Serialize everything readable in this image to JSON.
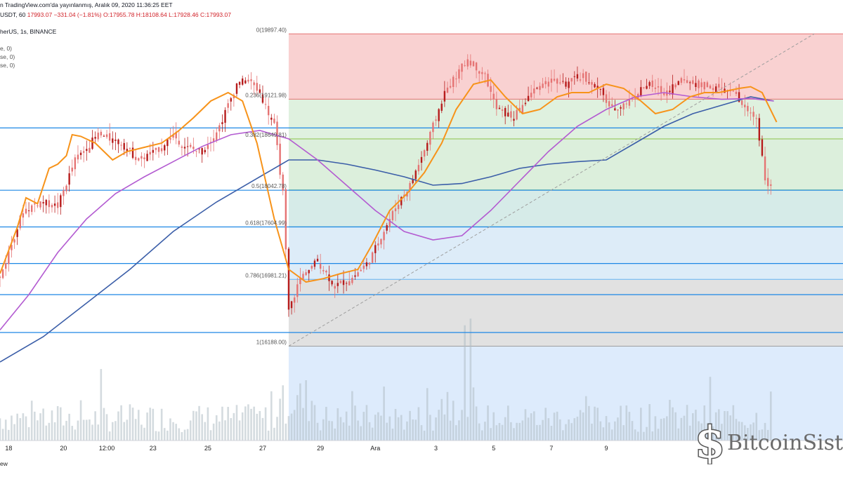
{
  "header": {
    "published": "n TradingView.com'da yayınlanmış, Aralık 09, 2020 11:36:25 EET",
    "symbol_prefix": "USDT, 60",
    "last": "17993.07",
    "change": "−331.04 (−1.81%)",
    "ohlc": "O:17955.78 H:18108.64 L:17928.46 C:17993.07",
    "source": "herUS, 1s, BINANCE",
    "ind1": "e, 0)",
    "ind2": "se, 0)",
    "ind3": "se, 0)"
  },
  "footer": {
    "brand": "ew"
  },
  "watermark": {
    "text": "BitcoinSisto",
    "icon": "bitcoin-logo-icon"
  },
  "colors": {
    "ema_fast": "#f7931a",
    "ema_mid": "#b35bd1",
    "ema_slow": "#3b5ea8",
    "hline": "#1e88e5",
    "candle": "#e57373",
    "candle_dark": "#b71c1c",
    "volume": "#b0bec5"
  },
  "chart_data": {
    "type": "candlestick",
    "x_ticks": [
      "18",
      "20",
      "12:00",
      "23",
      "25",
      "27",
      "29",
      "Ara",
      "3",
      "5",
      "7",
      "9"
    ],
    "fib_levels": [
      {
        "ratio": "0",
        "label": "0(19897.40)",
        "price": 19897.4
      },
      {
        "ratio": "0.236",
        "label": "0.236(19121.98)",
        "price": 19121.98
      },
      {
        "ratio": "0.382",
        "label": "0.382(18649.81)",
        "price": 18649.81
      },
      {
        "ratio": "0.5",
        "label": "0.5(18042.78)",
        "price": 18042.78
      },
      {
        "ratio": "0.618",
        "label": "0.618(17604.99)",
        "price": 17604.99
      },
      {
        "ratio": "0.786",
        "label": "0.786(16981.21)",
        "price": 16981.21
      },
      {
        "ratio": "1",
        "label": "1(16188.00)",
        "price": 16188.0
      }
    ],
    "horizontal_lines_price": [
      18780,
      18040,
      17604,
      17170,
      16800,
      16350
    ],
    "ema_fast": [
      [
        0,
        17050
      ],
      [
        6,
        17600
      ],
      [
        9,
        17950
      ],
      [
        13,
        17880
      ],
      [
        17,
        18300
      ],
      [
        20,
        18350
      ],
      [
        23,
        18450
      ],
      [
        25,
        18700
      ],
      [
        28,
        18680
      ],
      [
        33,
        18600
      ],
      [
        39,
        18400
      ],
      [
        44,
        18500
      ],
      [
        50,
        18550
      ],
      [
        56,
        18600
      ],
      [
        62,
        18750
      ],
      [
        67,
        18900
      ],
      [
        73,
        19100
      ],
      [
        79,
        19200
      ],
      [
        84,
        19100
      ],
      [
        89,
        18600
      ],
      [
        95,
        17700
      ],
      [
        100,
        17100
      ],
      [
        106,
        16950
      ],
      [
        112,
        16990
      ],
      [
        118,
        17050
      ],
      [
        124,
        17100
      ],
      [
        129,
        17400
      ],
      [
        135,
        17800
      ],
      [
        141,
        18000
      ],
      [
        147,
        18250
      ],
      [
        153,
        18600
      ],
      [
        158,
        19000
      ],
      [
        164,
        19300
      ],
      [
        170,
        19350
      ],
      [
        175,
        19150
      ],
      [
        181,
        18950
      ],
      [
        187,
        19000
      ],
      [
        193,
        19150
      ],
      [
        198,
        19200
      ],
      [
        204,
        19200
      ],
      [
        210,
        19300
      ],
      [
        216,
        19250
      ],
      [
        222,
        19100
      ],
      [
        227,
        18950
      ],
      [
        233,
        19000
      ],
      [
        239,
        19150
      ],
      [
        244,
        19200
      ],
      [
        249,
        19200
      ],
      [
        256,
        19250
      ],
      [
        260,
        19270
      ],
      [
        264,
        19200
      ],
      [
        269,
        18850
      ]
    ],
    "ema_mid": [
      [
        0,
        16380
      ],
      [
        10,
        16800
      ],
      [
        20,
        17300
      ],
      [
        30,
        17700
      ],
      [
        40,
        18000
      ],
      [
        50,
        18200
      ],
      [
        60,
        18380
      ],
      [
        70,
        18560
      ],
      [
        80,
        18700
      ],
      [
        90,
        18750
      ],
      [
        100,
        18650
      ],
      [
        110,
        18400
      ],
      [
        120,
        18100
      ],
      [
        130,
        17800
      ],
      [
        140,
        17550
      ],
      [
        150,
        17450
      ],
      [
        160,
        17500
      ],
      [
        170,
        17800
      ],
      [
        180,
        18150
      ],
      [
        190,
        18500
      ],
      [
        200,
        18800
      ],
      [
        210,
        19000
      ],
      [
        220,
        19150
      ],
      [
        230,
        19200
      ],
      [
        240,
        19150
      ],
      [
        250,
        19120
      ],
      [
        260,
        19130
      ],
      [
        268,
        19100
      ]
    ],
    "ema_slow": [
      [
        0,
        16000
      ],
      [
        15,
        16300
      ],
      [
        30,
        16700
      ],
      [
        45,
        17100
      ],
      [
        60,
        17550
      ],
      [
        75,
        17900
      ],
      [
        90,
        18200
      ],
      [
        100,
        18400
      ],
      [
        110,
        18400
      ],
      [
        120,
        18350
      ],
      [
        130,
        18280
      ],
      [
        140,
        18200
      ],
      [
        150,
        18100
      ],
      [
        160,
        18120
      ],
      [
        170,
        18200
      ],
      [
        180,
        18300
      ],
      [
        190,
        18350
      ],
      [
        200,
        18380
      ],
      [
        210,
        18400
      ],
      [
        220,
        18600
      ],
      [
        230,
        18800
      ],
      [
        240,
        18950
      ],
      [
        250,
        19050
      ],
      [
        260,
        19150
      ],
      [
        268,
        19100
      ]
    ],
    "price_path": [
      [
        0,
        17000
      ],
      [
        8,
        17800
      ],
      [
        14,
        17900
      ],
      [
        20,
        17850
      ],
      [
        26,
        18400
      ],
      [
        34,
        18700
      ],
      [
        42,
        18600
      ],
      [
        48,
        18400
      ],
      [
        54,
        18500
      ],
      [
        60,
        18700
      ],
      [
        64,
        18550
      ],
      [
        70,
        18500
      ],
      [
        76,
        18800
      ],
      [
        82,
        19300
      ],
      [
        86,
        19350
      ],
      [
        90,
        19200
      ],
      [
        95,
        18800
      ],
      [
        98,
        18000
      ],
      [
        100,
        16600
      ],
      [
        104,
        17000
      ],
      [
        110,
        17200
      ],
      [
        116,
        16900
      ],
      [
        122,
        17000
      ],
      [
        128,
        17200
      ],
      [
        132,
        17500
      ],
      [
        138,
        17900
      ],
      [
        142,
        18100
      ],
      [
        148,
        18600
      ],
      [
        154,
        19200
      ],
      [
        158,
        19400
      ],
      [
        162,
        19600
      ],
      [
        168,
        19400
      ],
      [
        172,
        19000
      ],
      [
        178,
        18900
      ],
      [
        184,
        19200
      ],
      [
        190,
        19350
      ],
      [
        196,
        19300
      ],
      [
        202,
        19400
      ],
      [
        208,
        19200
      ],
      [
        212,
        19000
      ],
      [
        218,
        19100
      ],
      [
        224,
        19300
      ],
      [
        230,
        19200
      ],
      [
        236,
        19350
      ],
      [
        242,
        19300
      ],
      [
        248,
        19250
      ],
      [
        254,
        19200
      ],
      [
        258,
        19000
      ],
      [
        262,
        18900
      ],
      [
        265,
        18200
      ],
      [
        268,
        17993
      ]
    ],
    "price_ylim": [
      15050,
      20300
    ],
    "x_index_range": [
      0,
      292
    ],
    "last_price": 17993.07
  }
}
